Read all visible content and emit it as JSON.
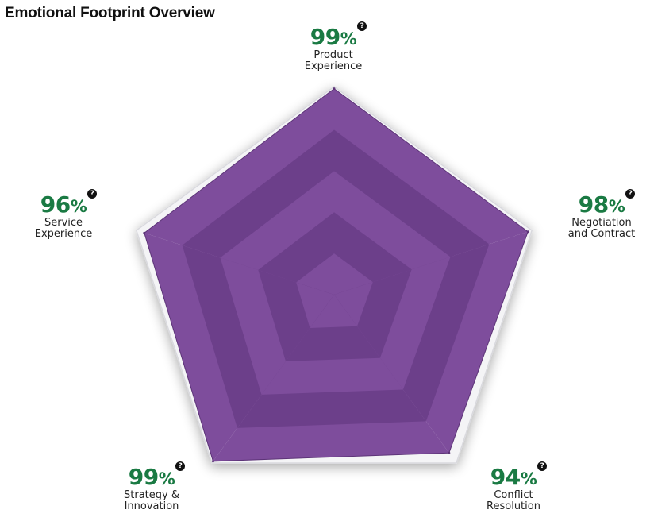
{
  "title": "Emotional Footprint Overview",
  "chart_data": {
    "type": "radar",
    "scale_max": 100,
    "axes": [
      {
        "value": 99,
        "value_text": "99",
        "unit": "%",
        "label_lines": [
          "Product",
          "Experience"
        ]
      },
      {
        "value": 98,
        "value_text": "98",
        "unit": "%",
        "label_lines": [
          "Negotiation",
          "and Contract"
        ]
      },
      {
        "value": 94,
        "value_text": "94",
        "unit": "%",
        "label_lines": [
          "Conflict",
          "Resolution"
        ]
      },
      {
        "value": 99,
        "value_text": "99",
        "unit": "%",
        "label_lines": [
          "Strategy &",
          "Innovation"
        ]
      },
      {
        "value": 96,
        "value_text": "96",
        "unit": "%",
        "label_lines": [
          "Service",
          "Experience"
        ]
      }
    ],
    "fill_color": "#7e4d9c",
    "fill_color_dark": "#6a3e87",
    "value_color": "#1a7a43",
    "help_icon": "question-mark-icon"
  }
}
